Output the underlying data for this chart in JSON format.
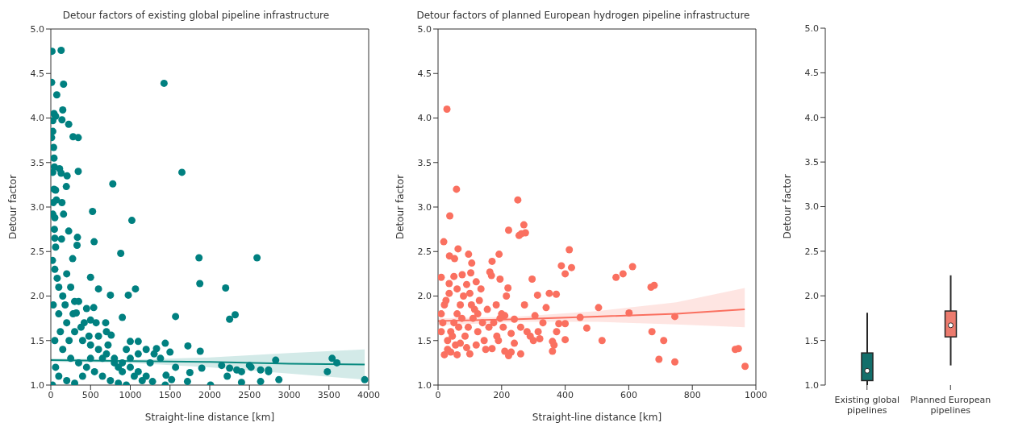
{
  "chart_data": [
    {
      "type": "scatter",
      "title": "Detour factors of existing global pipeline infrastructure",
      "xlabel": "Straight-line distance [km]",
      "ylabel": "Detour factor",
      "xlim": [
        0,
        4000
      ],
      "xticks": [
        0,
        500,
        1000,
        1500,
        2000,
        2500,
        3000,
        3500,
        4000
      ],
      "ylim": [
        1,
        5
      ],
      "yticks": [
        {
          "value": 1,
          "label": "1.0"
        },
        {
          "value": 1.5,
          "label": "1.5"
        },
        {
          "value": 2,
          "label": "2.0"
        },
        {
          "value": 2.5,
          "label": "2.5"
        },
        {
          "value": 3,
          "label": "3.0"
        },
        {
          "value": 3.5,
          "label": "3.5"
        },
        {
          "value": 4,
          "label": "4.0"
        },
        {
          "value": 4.5,
          "label": "4.5"
        },
        {
          "value": 5,
          "label": "5.0"
        }
      ],
      "series": [
        {
          "type": "scatter",
          "marker": "circle",
          "color": "#008080",
          "x": [
            15,
            130,
            10,
            160,
            75,
            150,
            40,
            60,
            25,
            140,
            225,
            25,
            10,
            280,
            345,
            35,
            40,
            45,
            110,
            25,
            130,
            205,
            345,
            1425,
            1650,
            780,
            195,
            40,
            60,
            70,
            140,
            30,
            160,
            25,
            50,
            525,
            1020,
            45,
            225,
            50,
            135,
            335,
            330,
            545,
            60,
            880,
            1865,
            2595,
            275,
            500,
            1875,
            2200,
            600,
            1065,
            750,
            975,
            900,
            1570,
            2320,
            2250,
            300,
            350,
            450,
            540,
            320,
            500,
            570,
            690,
            760,
            1000,
            1100,
            1440,
            1330,
            1725,
            1880,
            1500,
            1200,
            2830,
            3540,
            3600,
            3480,
            2500,
            2520,
            2150,
            2250,
            2340,
            2400,
            2640,
            2740,
            2740,
            1900,
            1570,
            1750,
            1450,
            1520,
            1280,
            1720,
            2220,
            2400,
            2640,
            2870,
            3950,
            2010,
            1440,
            20,
            50,
            80,
            100,
            150,
            200,
            250,
            30,
            100,
            200,
            300,
            400,
            500,
            600,
            700,
            800,
            900,
            1000,
            1100,
            1200,
            50,
            150,
            250,
            350,
            450,
            550,
            650,
            750,
            850,
            950,
            100,
            200,
            300,
            400,
            500,
            600,
            700,
            800,
            900,
            1000,
            1100,
            1150,
            20,
            60,
            120,
            180,
            230,
            280,
            380,
            420,
            480,
            650,
            720,
            850,
            950,
            1050,
            1250,
            1300,
            1380
          ],
          "values": [
            4.75,
            4.76,
            4.4,
            4.38,
            4.26,
            4.09,
            4.05,
            4.02,
            3.97,
            3.98,
            3.93,
            3.85,
            3.78,
            3.79,
            3.78,
            3.67,
            3.55,
            3.45,
            3.43,
            3.39,
            3.38,
            3.35,
            3.4,
            4.39,
            3.39,
            3.26,
            3.23,
            3.2,
            3.19,
            3.08,
            3.05,
            3.05,
            2.92,
            2.92,
            2.88,
            2.95,
            2.85,
            2.75,
            2.73,
            2.65,
            2.64,
            2.66,
            2.57,
            2.61,
            2.55,
            2.48,
            2.43,
            2.43,
            2.42,
            2.21,
            2.14,
            2.09,
            2.08,
            2.08,
            2.01,
            2.01,
            1.76,
            1.77,
            1.79,
            1.74,
            1.94,
            1.94,
            1.86,
            1.87,
            1.81,
            1.73,
            1.7,
            1.7,
            1.56,
            1.49,
            1.49,
            1.47,
            1.41,
            1.44,
            1.38,
            1.37,
            1.4,
            1.28,
            1.3,
            1.25,
            1.15,
            1.22,
            1.2,
            1.22,
            1.19,
            1.17,
            1.15,
            1.17,
            1.17,
            1.15,
            1.19,
            1.2,
            1.14,
            1.11,
            1.06,
            1.04,
            1.04,
            1.1,
            1.03,
            1.04,
            1.06,
            1.06,
            1.0,
            1.0,
            2.4,
            2.3,
            2.2,
            2.1,
            2.0,
            2.25,
            2.1,
            1.9,
            1.8,
            1.7,
            1.6,
            1.5,
            1.45,
            1.4,
            1.35,
            1.3,
            1.25,
            1.2,
            1.15,
            1.1,
            1.5,
            1.4,
            1.3,
            1.25,
            1.2,
            1.15,
            1.1,
            1.05,
            1.02,
            1.0,
            1.1,
            1.05,
            1.02,
            1.1,
            1.3,
            1.55,
            1.6,
            1.25,
            1.15,
            1.3,
            1.35,
            1.05,
            1.0,
            1.2,
            1.6,
            1.9,
            1.5,
            1.8,
            1.65,
            1.7,
            1.55,
            1.3,
            1.45,
            1.2,
            1.4,
            1.1,
            1.25,
            1.35,
            1.3
          ]
        },
        {
          "type": "line",
          "marker": "none",
          "color": "#0a8a80",
          "x": [
            0,
            1000,
            2000,
            3000,
            3950
          ],
          "values": [
            1.28,
            1.27,
            1.26,
            1.24,
            1.23
          ],
          "lower": [
            1.26,
            1.25,
            1.2,
            1.13,
            1.06
          ],
          "upper": [
            1.3,
            1.285,
            1.31,
            1.36,
            1.4
          ]
        }
      ]
    },
    {
      "type": "scatter",
      "title": "Detour factors of planned European hydrogen pipeline infrastructure",
      "xlabel": "Straight-line distance [km]",
      "ylabel": "Detour factor",
      "xlim": [
        0,
        1000
      ],
      "xticks": [
        0,
        200,
        400,
        600,
        800,
        1000
      ],
      "ylim": [
        1,
        5
      ],
      "yticks": [
        {
          "value": 1,
          "label": "1.0"
        },
        {
          "value": 1.5,
          "label": "1.5"
        },
        {
          "value": 2,
          "label": "2.0"
        },
        {
          "value": 2.5,
          "label": "2.5"
        },
        {
          "value": 3,
          "label": "3.0"
        },
        {
          "value": 3.5,
          "label": "3.5"
        },
        {
          "value": 4,
          "label": "4.0"
        },
        {
          "value": 4.5,
          "label": "4.5"
        },
        {
          "value": 5,
          "label": "5.0"
        }
      ],
      "series": [
        {
          "type": "scatter",
          "marker": "circle",
          "color": "#fa7060",
          "x": [
            28,
            58,
            37,
            251,
            270,
            222,
            255,
            262,
            275,
            18,
            63,
            36,
            52,
            96,
            192,
            413,
            170,
            106,
            388,
            420,
            400,
            612,
            582,
            560,
            10,
            50,
            76,
            103,
            163,
            168,
            296,
            195,
            120,
            680,
            670,
            220,
            135,
            35,
            90,
            350,
            372,
            313,
            215,
            100,
            272,
            183,
            340,
            505,
            601,
            745,
            447,
            305,
            468,
            516,
            673,
            710,
            695,
            745,
            935,
            945,
            966,
            400,
            360,
            365,
            360,
            373,
            380,
            400,
            320,
            315,
            300,
            260,
            230,
            222,
            210,
            240,
            230,
            20,
            60,
            100,
            150,
            170,
            190,
            280,
            290,
            330,
            260,
            240,
            210,
            30,
            40,
            50,
            60,
            70,
            80,
            20,
            10,
            10,
            15,
            30,
            45,
            55,
            65,
            75,
            85,
            95,
            110,
            115,
            125,
            130,
            140,
            145,
            155,
            160,
            175,
            185,
            195,
            200,
            205,
            120,
            90,
            70,
            40,
            25,
            35,
            60,
            105,
            125
          ],
          "values": [
            4.1,
            3.2,
            2.9,
            3.08,
            2.8,
            2.74,
            2.68,
            2.7,
            2.71,
            2.61,
            2.53,
            2.45,
            2.42,
            2.47,
            2.47,
            2.52,
            2.39,
            2.37,
            2.34,
            2.32,
            2.25,
            2.33,
            2.25,
            2.21,
            2.21,
            2.22,
            2.24,
            2.26,
            2.27,
            2.23,
            2.19,
            2.19,
            2.16,
            2.12,
            2.1,
            2.09,
            2.08,
            2.14,
            2.13,
            2.03,
            2.02,
            2.01,
            2.0,
            2.03,
            1.9,
            1.9,
            1.87,
            1.87,
            1.81,
            1.77,
            1.76,
            1.78,
            1.64,
            1.5,
            1.6,
            1.5,
            1.29,
            1.26,
            1.4,
            1.41,
            1.21,
            1.51,
            1.49,
            1.45,
            1.38,
            1.6,
            1.69,
            1.69,
            1.52,
            1.6,
            1.5,
            1.35,
            1.37,
            1.33,
            1.38,
            1.47,
            1.58,
            1.34,
            1.34,
            1.35,
            1.4,
            1.41,
            1.5,
            1.6,
            1.55,
            1.7,
            1.65,
            1.74,
            1.78,
            1.5,
            1.6,
            1.7,
            1.8,
            1.9,
            2.0,
            1.9,
            1.8,
            1.6,
            1.7,
            1.4,
            1.55,
            1.45,
            1.65,
            1.75,
            1.55,
            1.65,
            1.75,
            1.85,
            1.6,
            1.95,
            1.7,
            1.5,
            1.85,
            1.65,
            1.7,
            1.55,
            1.75,
            1.8,
            1.65,
            1.45,
            1.42,
            1.47,
            1.37,
            1.95,
            2.03,
            2.08,
            1.9,
            1.8
          ]
        },
        {
          "type": "line",
          "marker": "none",
          "color": "#fa7060",
          "x": [
            0,
            250,
            500,
            750,
            965
          ],
          "values": [
            1.72,
            1.74,
            1.77,
            1.8,
            1.85
          ],
          "lower": [
            1.67,
            1.71,
            1.71,
            1.68,
            1.65
          ],
          "upper": [
            1.75,
            1.77,
            1.83,
            1.93,
            2.09
          ]
        }
      ]
    },
    {
      "type": "box",
      "ylabel": "Detour factor",
      "categories": [
        "Existing global pipelines",
        "Planned European pipelines"
      ],
      "colors": [
        "#136f6b",
        "#ec7b6e"
      ],
      "ylim": [
        1,
        5
      ],
      "yticks": [
        {
          "value": 1,
          "label": "1.0"
        },
        {
          "value": 1.5,
          "label": "1.5"
        },
        {
          "value": 2,
          "label": "2.0"
        },
        {
          "value": 2.5,
          "label": "2.5"
        },
        {
          "value": 3,
          "label": "3.0"
        },
        {
          "value": 3.5,
          "label": "3.5"
        },
        {
          "value": 4,
          "label": "4.0"
        },
        {
          "value": 4.5,
          "label": "4.5"
        },
        {
          "value": 5,
          "label": "5.0"
        }
      ],
      "boxes": [
        {
          "low": 1.0,
          "q1": 1.05,
          "median": 1.16,
          "q3": 1.36,
          "high": 1.81
        },
        {
          "low": 1.22,
          "q1": 1.54,
          "median": 1.67,
          "q3": 1.83,
          "high": 2.23
        }
      ]
    }
  ]
}
